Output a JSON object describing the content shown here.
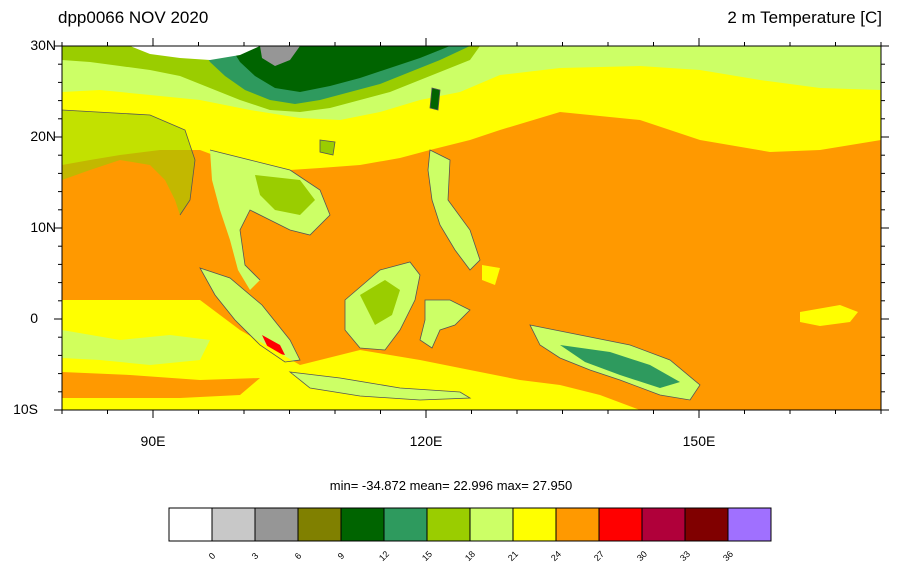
{
  "header": {
    "left_title": "dpp0066 NOV 2020",
    "right_title": "2 m Temperature [C]"
  },
  "stats": {
    "text": "min= -34.872  mean=  22.996  max=  27.950"
  },
  "axes": {
    "lat_labels": [
      "30N",
      "20N",
      "10N",
      "0",
      "10S"
    ],
    "lon_labels": [
      "90E",
      "120E",
      "150E"
    ],
    "lon_range": [
      80,
      170
    ],
    "lat_range": [
      -10,
      30
    ]
  },
  "colorbar": {
    "labels": [
      "0",
      "3",
      "6",
      "9",
      "12",
      "15",
      "18",
      "21",
      "24",
      "27",
      "30",
      "33",
      "36"
    ],
    "colors": [
      "#ffffff",
      "#c8c8c8",
      "#969696",
      "#808000",
      "#006400",
      "#2e9a5e",
      "#9acd00",
      "#ccff66",
      "#ffff00",
      "#ff9900",
      "#ff0000",
      "#b0003a",
      "#800000",
      "#a070ff"
    ]
  },
  "palette": {
    "ocean_warm": "#ff9900",
    "band_24": "#ffff00",
    "band_21": "#ccff66",
    "band_18": "#9acd00",
    "land_15": "#2e9a5e",
    "land_12": "#006400",
    "land_9": "#808000",
    "coast": "#555555"
  }
}
